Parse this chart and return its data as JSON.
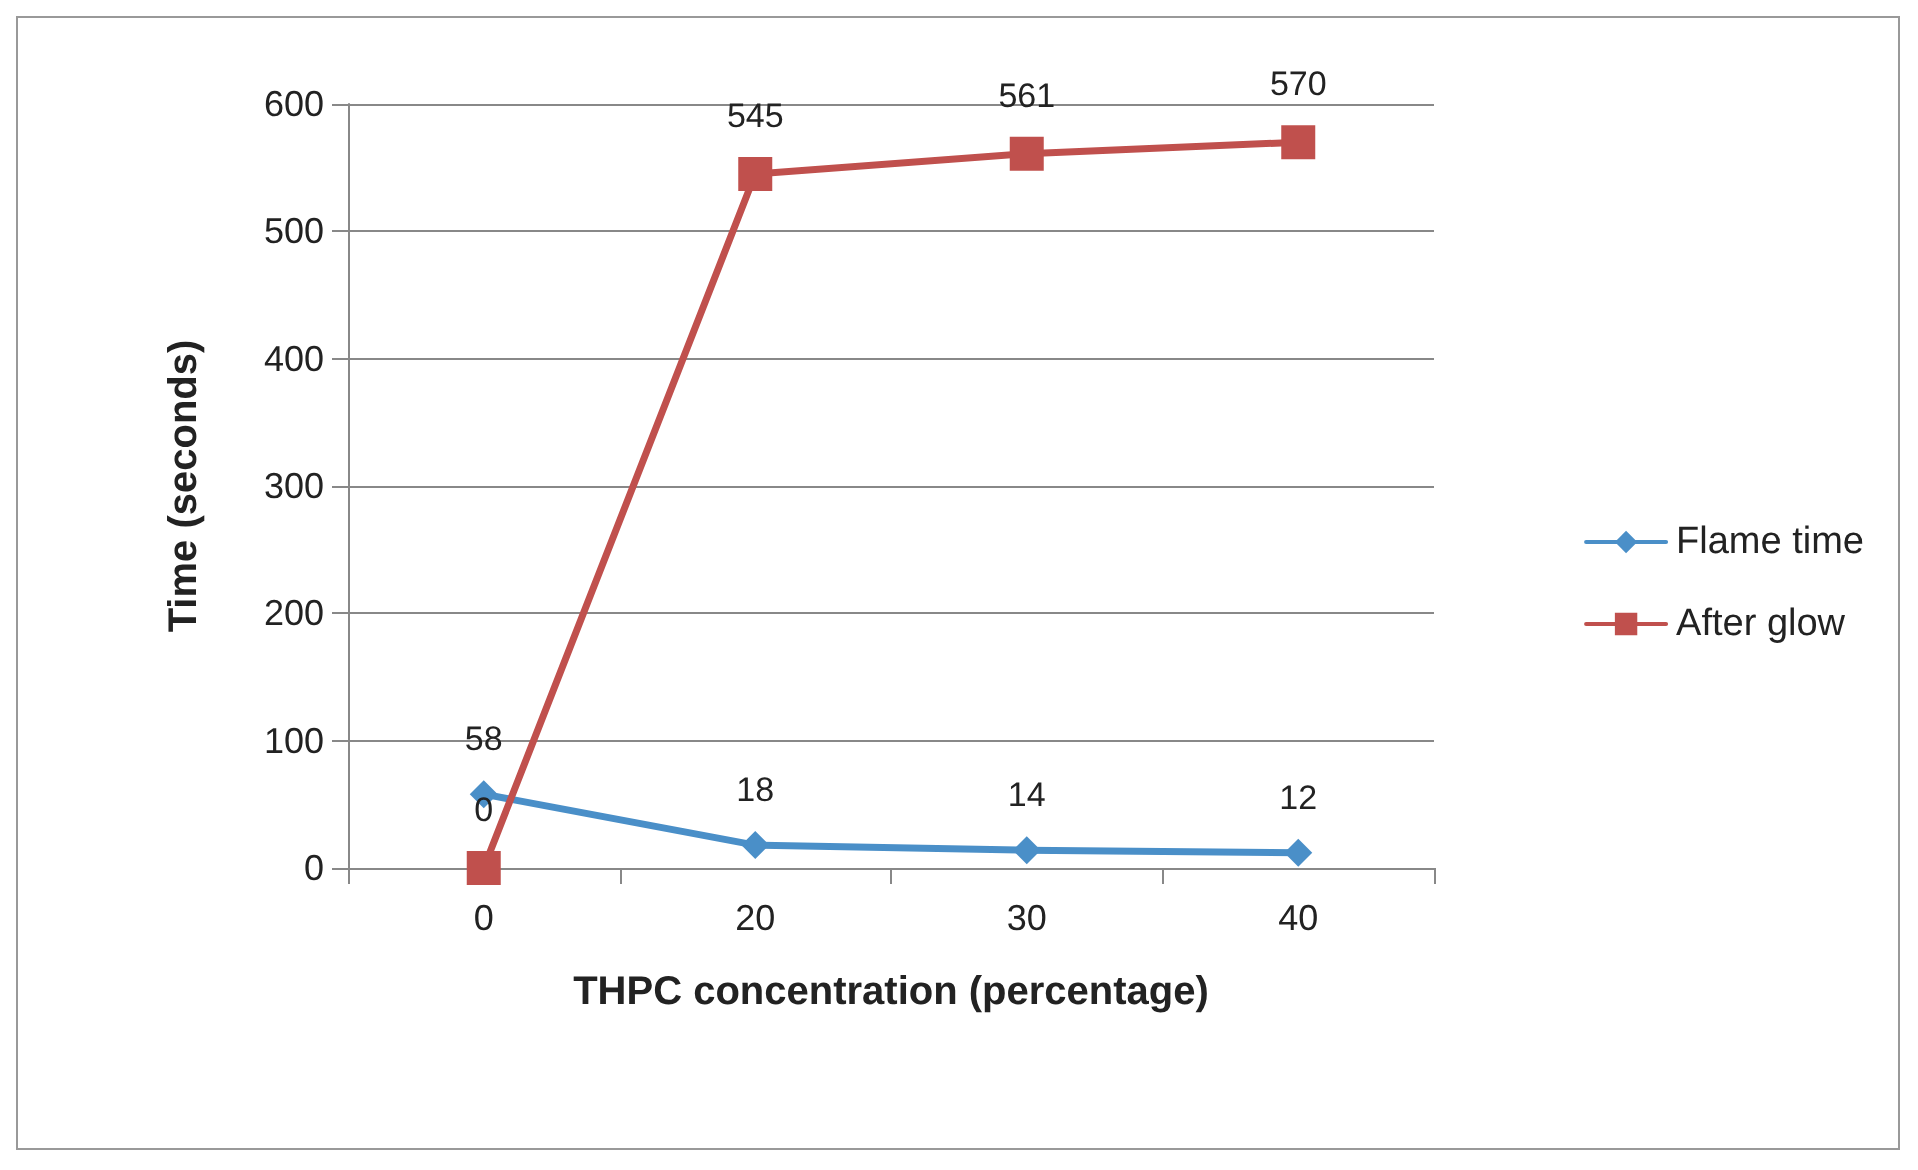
{
  "chart_data": {
    "type": "line",
    "xlabel": "THPC concentration (percentage)",
    "ylabel": "Time (seconds)",
    "categories": [
      "0",
      "20",
      "30",
      "40"
    ],
    "series": [
      {
        "name": "Flame time",
        "color": "#4a8fc8",
        "marker": "diamond",
        "values": [
          58,
          18,
          14,
          12
        ]
      },
      {
        "name": "After glow",
        "color": "#c0504d",
        "marker": "square",
        "values": [
          0,
          545,
          561,
          570
        ]
      }
    ],
    "ylim": [
      0,
      600
    ],
    "yticks": [
      0,
      100,
      200,
      300,
      400,
      500,
      600
    ],
    "grid": "y",
    "legend": "right",
    "data_labels": true,
    "line_style": "solid"
  }
}
